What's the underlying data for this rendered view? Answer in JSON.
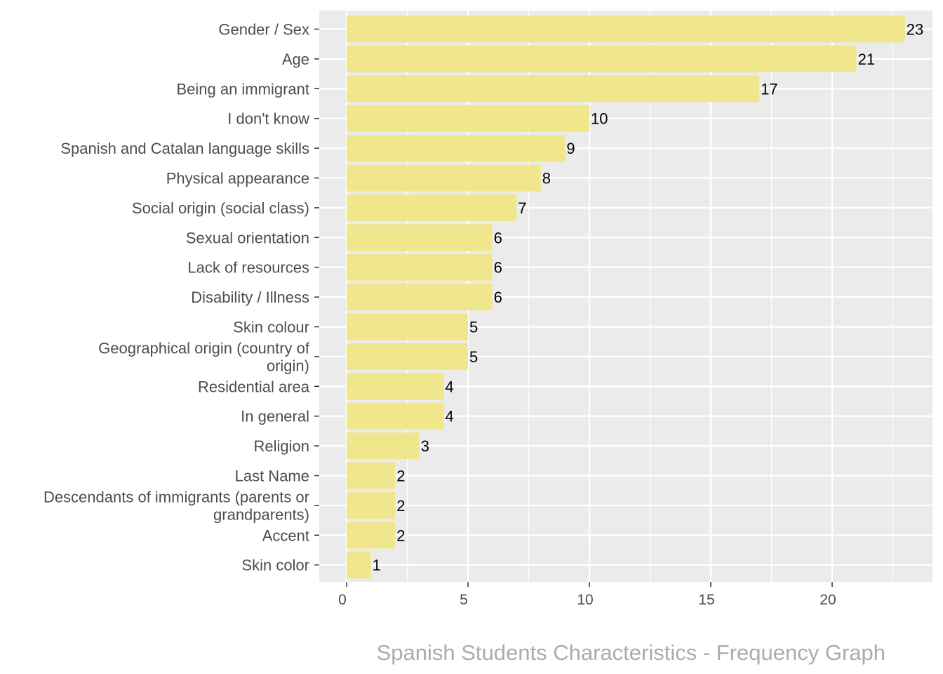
{
  "chart_data": {
    "type": "bar",
    "orientation": "horizontal",
    "categories": [
      "Gender / Sex",
      "Age",
      "Being an immigrant",
      "I don't know",
      "Spanish and Catalan language skills",
      "Physical appearance",
      "Social origin (social class)",
      "Sexual orientation",
      "Lack of resources",
      "Disability / Illness",
      "Skin colour",
      "Geographical origin (country of origin)",
      "Residential area",
      "In general",
      "Religion",
      "Last Name",
      "Descendants of immigrants (parents or grandparents)",
      "Accent",
      "Skin color"
    ],
    "values": [
      23,
      21,
      17,
      10,
      9,
      8,
      7,
      6,
      6,
      6,
      5,
      5,
      4,
      4,
      3,
      2,
      2,
      2,
      1
    ],
    "xlim": [
      0,
      24
    ],
    "x_ticks": [
      0,
      5,
      10,
      15,
      20
    ],
    "x_tick_labels": [
      "0",
      "5",
      "10",
      "15",
      "20"
    ],
    "caption": "Spanish Students Characteristics - Frequency Graph",
    "title": "",
    "xlabel": "",
    "ylabel": "",
    "grid": true,
    "legend": "none",
    "colors": {
      "bar_fill": "#f0e68c",
      "panel_background": "#ebebeb",
      "grid": "#ffffff",
      "axis_text": "#4d4d4d",
      "data_label": "#000000",
      "caption": "#ababab"
    }
  }
}
